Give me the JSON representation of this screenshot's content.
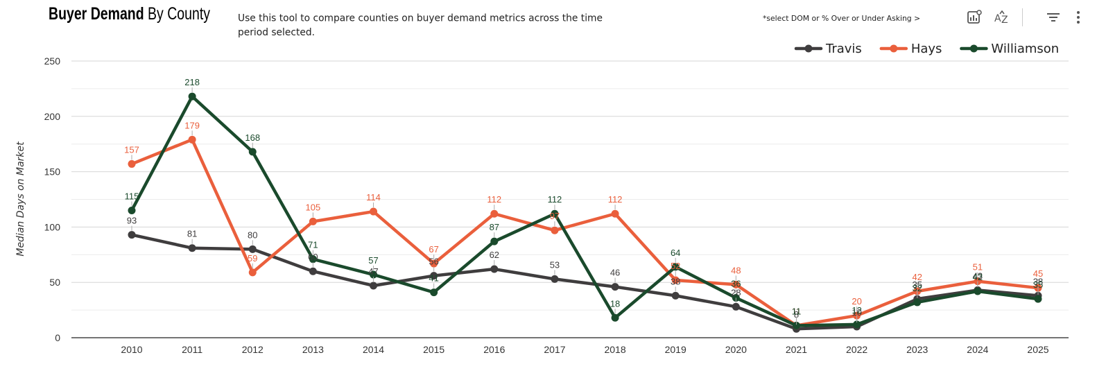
{
  "header": {
    "title_bold": "Buyer Demand",
    "title_rest": " By County",
    "description": "Use this tool to compare counties on buyer demand metrics across the time period selected.",
    "hint": "*select DOM or % Over or Under Asking >"
  },
  "toolbar": {
    "insights_icon": "chart-insights-icon",
    "sort_icon": "sort-az-icon",
    "filter_icon": "filter-icon",
    "more_icon": "more-vertical-icon"
  },
  "colors": {
    "Travis": "#3f3d3e",
    "Hays": "#ea5f3c",
    "Williamson": "#1a4a2c",
    "grid": "#dddddd"
  },
  "chart_data": {
    "type": "line",
    "title": "",
    "xlabel": "",
    "ylabel": "Median Days on Market",
    "ylim": [
      0,
      250
    ],
    "yticks": [
      0,
      50,
      100,
      150,
      200,
      250
    ],
    "grid": true,
    "legend": "top-right",
    "categories": [
      "2010",
      "2011",
      "2012",
      "2013",
      "2014",
      "2015",
      "2016",
      "2017",
      "2018",
      "2019",
      "2020",
      "2021",
      "2022",
      "2023",
      "2024",
      "2025"
    ],
    "series": [
      {
        "name": "Travis",
        "values": [
          93,
          81,
          80,
          60,
          47,
          56,
          62,
          53,
          46,
          38,
          28,
          8,
          10,
          35,
          43,
          38
        ]
      },
      {
        "name": "Hays",
        "values": [
          157,
          179,
          59,
          105,
          114,
          67,
          112,
          97,
          112,
          52,
          48,
          11,
          20,
          42,
          51,
          45
        ]
      },
      {
        "name": "Williamson",
        "values": [
          115,
          218,
          168,
          71,
          57,
          41,
          87,
          112,
          18,
          64,
          36,
          11,
          12,
          32,
          42,
          35
        ]
      }
    ]
  }
}
